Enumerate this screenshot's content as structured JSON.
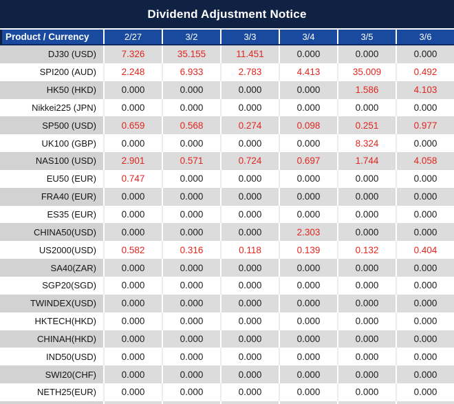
{
  "title": "Dividend Adjustment Notice",
  "colors": {
    "title_bg": "#0f2244",
    "header_bg": "#1a4a9e",
    "header_underline": "#0d2a5e",
    "stripe_label_gray": "#d2d2d2",
    "stripe_value_gray": "#dcdcdc",
    "row_white": "#ffffff",
    "nonzero_value_red": "#e1251f",
    "zero_value_black": "#1b1b1b",
    "header_text": "#ffffff"
  },
  "chart_data": {
    "type": "table",
    "title": "Dividend Adjustment Notice",
    "columns": [
      "Product / Currency",
      "2/27",
      "3/2",
      "3/3",
      "3/4",
      "3/5",
      "3/6"
    ],
    "rows": [
      {
        "product": "DJ30 (USD)",
        "values": [
          "7.326",
          "35.155",
          "11.451",
          "0.000",
          "0.000",
          "0.000"
        ]
      },
      {
        "product": "SPI200 (AUD)",
        "values": [
          "2.248",
          "6.933",
          "2.783",
          "4.413",
          "35.009",
          "0.492"
        ]
      },
      {
        "product": "HK50 (HKD)",
        "values": [
          "0.000",
          "0.000",
          "0.000",
          "0.000",
          "1.586",
          "4.103"
        ]
      },
      {
        "product": "Nikkei225 (JPN)",
        "values": [
          "0.000",
          "0.000",
          "0.000",
          "0.000",
          "0.000",
          "0.000"
        ]
      },
      {
        "product": "SP500 (USD)",
        "values": [
          "0.659",
          "0.568",
          "0.274",
          "0.098",
          "0.251",
          "0.977"
        ]
      },
      {
        "product": "UK100 (GBP)",
        "values": [
          "0.000",
          "0.000",
          "0.000",
          "0.000",
          "8.324",
          "0.000"
        ]
      },
      {
        "product": "NAS100 (USD)",
        "values": [
          "2.901",
          "0.571",
          "0.724",
          "0.697",
          "1.744",
          "4.058"
        ]
      },
      {
        "product": "EU50 (EUR)",
        "values": [
          "0.747",
          "0.000",
          "0.000",
          "0.000",
          "0.000",
          "0.000"
        ]
      },
      {
        "product": "FRA40 (EUR)",
        "values": [
          "0.000",
          "0.000",
          "0.000",
          "0.000",
          "0.000",
          "0.000"
        ]
      },
      {
        "product": "ES35 (EUR)",
        "values": [
          "0.000",
          "0.000",
          "0.000",
          "0.000",
          "0.000",
          "0.000"
        ]
      },
      {
        "product": "CHINA50(USD)",
        "values": [
          "0.000",
          "0.000",
          "0.000",
          "2.303",
          "0.000",
          "0.000"
        ]
      },
      {
        "product": "US2000(USD)",
        "values": [
          "0.582",
          "0.316",
          "0.118",
          "0.139",
          "0.132",
          "0.404"
        ]
      },
      {
        "product": "SA40(ZAR)",
        "values": [
          "0.000",
          "0.000",
          "0.000",
          "0.000",
          "0.000",
          "0.000"
        ]
      },
      {
        "product": "SGP20(SGD)",
        "values": [
          "0.000",
          "0.000",
          "0.000",
          "0.000",
          "0.000",
          "0.000"
        ]
      },
      {
        "product": "TWINDEX(USD)",
        "values": [
          "0.000",
          "0.000",
          "0.000",
          "0.000",
          "0.000",
          "0.000"
        ]
      },
      {
        "product": "HKTECH(HKD)",
        "values": [
          "0.000",
          "0.000",
          "0.000",
          "0.000",
          "0.000",
          "0.000"
        ]
      },
      {
        "product": "CHINAH(HKD)",
        "values": [
          "0.000",
          "0.000",
          "0.000",
          "0.000",
          "0.000",
          "0.000"
        ]
      },
      {
        "product": "IND50(USD)",
        "values": [
          "0.000",
          "0.000",
          "0.000",
          "0.000",
          "0.000",
          "0.000"
        ]
      },
      {
        "product": "SWI20(CHF)",
        "values": [
          "0.000",
          "0.000",
          "0.000",
          "0.000",
          "0.000",
          "0.000"
        ]
      },
      {
        "product": "NETH25(EUR)",
        "values": [
          "0.000",
          "0.000",
          "0.000",
          "0.000",
          "0.000",
          "0.000"
        ]
      }
    ]
  }
}
